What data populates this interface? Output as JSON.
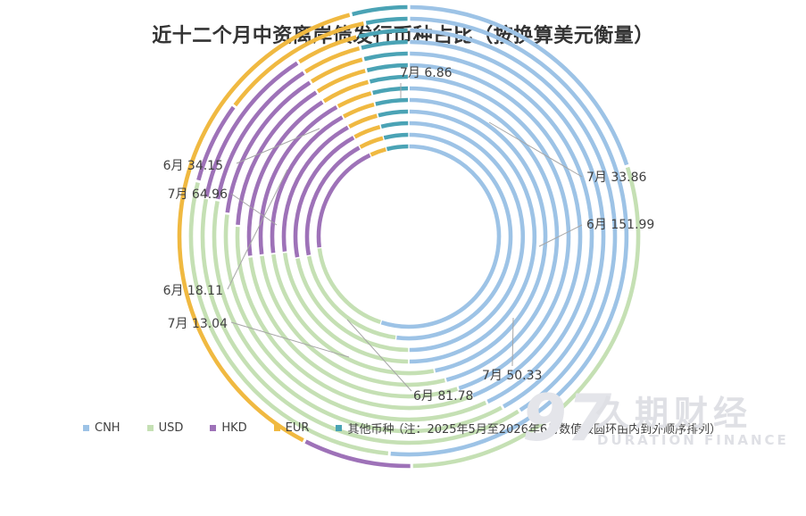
{
  "chart_data": {
    "type": "pie",
    "subtype": "multi-ring-doughnut",
    "title": "近十二个月中资离岸债发行币种占比（按换算美元衡量）",
    "ring_order_note": "（注：2025年5月至2026年6月数值按圆环由内到外顺序排列）",
    "categories": [
      "CNH",
      "USD",
      "HKD",
      "EUR",
      "其他币种"
    ],
    "colors": [
      "#9dc3e6",
      "#c5e0b4",
      "#9e72b8",
      "#f0b941",
      "#4aa3b5"
    ],
    "rings": [
      {
        "values": [
          55,
          18,
          20,
          3,
          4
        ]
      },
      {
        "values": [
          52,
          20,
          20,
          4,
          4
        ]
      },
      {
        "values": [
          50,
          22,
          20,
          4,
          4
        ]
      },
      {
        "values": [
          50,
          23,
          19,
          4,
          4
        ]
      },
      {
        "values": [
          47,
          26,
          19,
          4,
          4
        ]
      },
      {
        "values": [
          46,
          27,
          19,
          4,
          4
        ]
      },
      {
        "values": [
          45,
          28,
          18,
          5,
          4
        ]
      },
      {
        "values": [
          44,
          32,
          15,
          5,
          4
        ]
      },
      {
        "values": [
          43,
          34,
          14,
          5,
          4
        ]
      },
      {
        "values": [
          42,
          36,
          13,
          5,
          4
        ]
      },
      {
        "values": [
          41,
          37,
          13,
          5,
          4
        ]
      },
      {
        "values": [
          51.42,
          27.66,
          6.13,
          11.56,
          3.23
        ],
        "label": "6月"
      },
      {
        "values": [
          33.86,
          50.33,
          13.04,
          64.96,
          6.86
        ],
        "label": "7月"
      }
    ],
    "annotations": [
      {
        "text": "7月 6.86"
      },
      {
        "text": "7月 33.86"
      },
      {
        "text": "6月 151.99"
      },
      {
        "text": "7月 50.33"
      },
      {
        "text": "6月 81.78"
      },
      {
        "text": "7月 13.04"
      },
      {
        "text": "6月 18.11"
      },
      {
        "text": "7月 64.96"
      },
      {
        "text": "6月 34.15"
      }
    ],
    "legend_position": "bottom-left"
  },
  "watermark": {
    "number": "97",
    "name_cn": "久期财经",
    "name_en": "DURATION FINANCE"
  }
}
